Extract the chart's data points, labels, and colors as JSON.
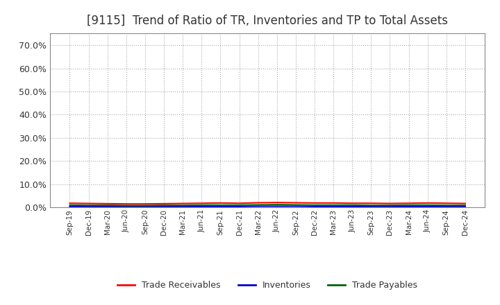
{
  "title": "[9115]  Trend of Ratio of TR, Inventories and TP to Total Assets",
  "title_fontsize": 12,
  "title_color": "#333333",
  "background_color": "#ffffff",
  "plot_background_color": "#ffffff",
  "grid_color": "#aaaaaa",
  "x_labels": [
    "Sep-19",
    "Dec-19",
    "Mar-20",
    "Jun-20",
    "Sep-20",
    "Dec-20",
    "Mar-21",
    "Jun-21",
    "Sep-21",
    "Dec-21",
    "Mar-22",
    "Jun-22",
    "Sep-22",
    "Dec-22",
    "Mar-23",
    "Jun-23",
    "Sep-23",
    "Dec-23",
    "Mar-24",
    "Jun-24",
    "Sep-24",
    "Dec-24"
  ],
  "trade_receivables": [
    0.018,
    0.017,
    0.016,
    0.015,
    0.015,
    0.016,
    0.017,
    0.018,
    0.019,
    0.018,
    0.02,
    0.021,
    0.02,
    0.019,
    0.019,
    0.018,
    0.018,
    0.017,
    0.018,
    0.019,
    0.018,
    0.017
  ],
  "inventories": [
    0.004,
    0.004,
    0.004,
    0.004,
    0.004,
    0.004,
    0.004,
    0.004,
    0.004,
    0.004,
    0.005,
    0.005,
    0.005,
    0.004,
    0.004,
    0.004,
    0.004,
    0.004,
    0.004,
    0.004,
    0.004,
    0.004
  ],
  "trade_payables": [
    0.01,
    0.009,
    0.009,
    0.008,
    0.008,
    0.009,
    0.009,
    0.01,
    0.01,
    0.01,
    0.011,
    0.012,
    0.011,
    0.01,
    0.01,
    0.01,
    0.009,
    0.009,
    0.01,
    0.01,
    0.009,
    0.009
  ],
  "tr_color": "#ff0000",
  "inv_color": "#0000cd",
  "tp_color": "#006400",
  "ylim": [
    0.0,
    0.75
  ],
  "yticks": [
    0.0,
    0.1,
    0.2,
    0.3,
    0.4,
    0.5,
    0.6,
    0.7
  ],
  "legend_labels": [
    "Trade Receivables",
    "Inventories",
    "Trade Payables"
  ],
  "legend_colors": [
    "#ff0000",
    "#0000cd",
    "#006400"
  ]
}
